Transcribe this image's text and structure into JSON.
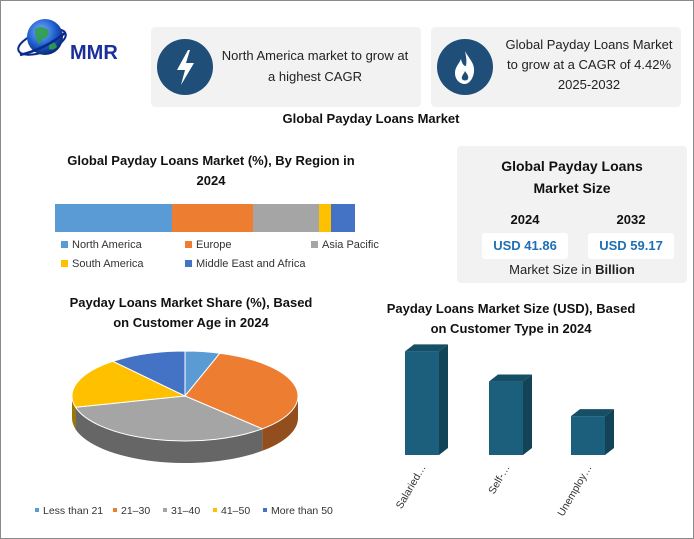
{
  "brand": {
    "logo_text": "MMR"
  },
  "header_cards": [
    {
      "text_line1": "North America market to grow at",
      "text_line2": "a highest CAGR"
    },
    {
      "text_line1": "Global Payday Loans Market",
      "text_line2": "to grow at a CAGR of 4.42%",
      "text_line3": "2025-2032"
    }
  ],
  "main_title": "Global Payday Loans Market",
  "market_size": {
    "title_line1": "Global Payday Loans",
    "title_line2": "Market Size",
    "year1": "2024",
    "year2": "2032",
    "value1": "USD 41.86",
    "value2": "USD 59.17",
    "footer_prefix": "Market Size in ",
    "footer_bold": "Billion"
  },
  "colors": {
    "blue": "#5b9bd5",
    "orange": "#ed7d31",
    "gray": "#a5a5a5",
    "yellow": "#ffc000",
    "darkblue": "#4472c4",
    "teal": "#1b5f7c",
    "navy": "#1f4e79"
  },
  "chart_data": [
    {
      "type": "bar",
      "orientation": "horizontal-stacked",
      "title_line1": "Global Payday Loans Market (%), By Region in",
      "title_line2": "2024",
      "series": [
        {
          "name": "North America",
          "value": 39,
          "color": "#5b9bd5"
        },
        {
          "name": "Europe",
          "value": 27,
          "color": "#ed7d31"
        },
        {
          "name": "Asia Pacific",
          "value": 22,
          "color": "#a5a5a5"
        },
        {
          "name": "South America",
          "value": 4,
          "color": "#ffc000"
        },
        {
          "name": "Middle East and Africa",
          "value": 8,
          "color": "#4472c4"
        }
      ],
      "legend": "bottom"
    },
    {
      "type": "pie",
      "style": "3d",
      "title_line1": "Payday Loans Market Share (%), Based",
      "title_line2": "on Customer Age in 2024",
      "slices": [
        {
          "name": "Less than 21",
          "value": 5,
          "color": "#5b9bd5"
        },
        {
          "name": "21–30",
          "value": 33,
          "color": "#ed7d31"
        },
        {
          "name": "31–40",
          "value": 33,
          "color": "#a5a5a5"
        },
        {
          "name": "41–50",
          "value": 18,
          "color": "#ffc000"
        },
        {
          "name": "More than 50",
          "value": 11,
          "color": "#4472c4"
        }
      ],
      "legend": "bottom"
    },
    {
      "type": "bar",
      "style": "3d",
      "title_line1": "Payday Loans Market Size (USD), Based",
      "title_line2": "on Customer Type in 2024",
      "categories": [
        "Salaried…",
        "Self-…",
        "Unemploy…"
      ],
      "values": [
        24,
        17,
        9
      ],
      "color": "#1b5f7c",
      "ylim": [
        0,
        25
      ]
    }
  ]
}
